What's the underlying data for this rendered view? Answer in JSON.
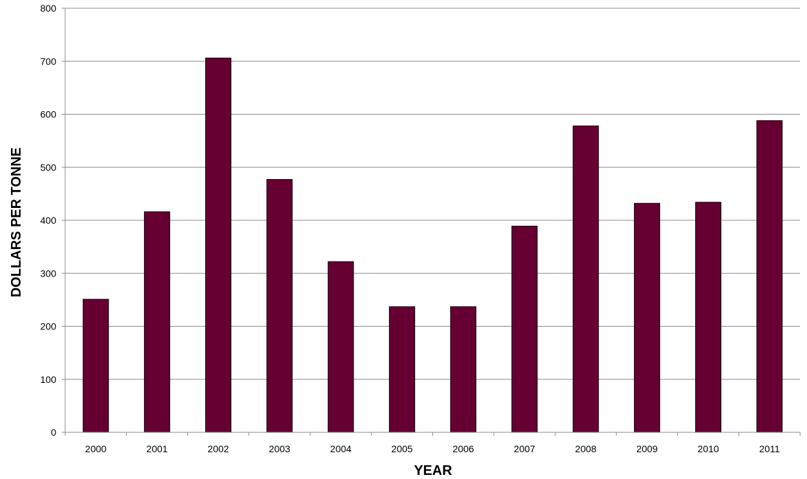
{
  "chart_data": {
    "type": "bar",
    "title": "",
    "xlabel": "YEAR",
    "ylabel": "DOLLARS PER TONNE",
    "categories": [
      "2000",
      "2001",
      "2002",
      "2003",
      "2004",
      "2005",
      "2006",
      "2007",
      "2008",
      "2009",
      "2010",
      "2011"
    ],
    "values": [
      251,
      416,
      706,
      477,
      322,
      237,
      237,
      389,
      578,
      432,
      434,
      588
    ],
    "ylim": [
      0,
      800
    ],
    "yticks": [
      0,
      100,
      200,
      300,
      400,
      500,
      600,
      700,
      800
    ],
    "grid": true,
    "legend": "none",
    "bar_color": "#660033"
  }
}
